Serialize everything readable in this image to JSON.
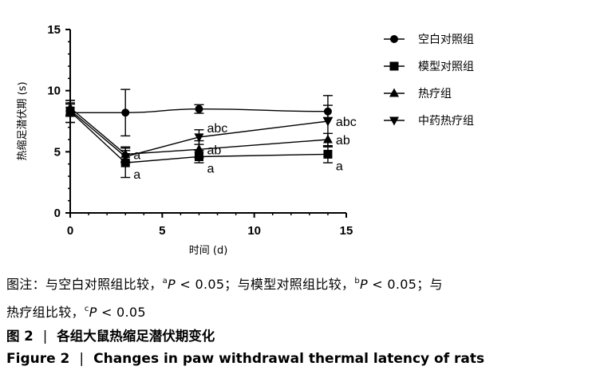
{
  "chart_data": {
    "type": "line",
    "xlabel": "时间 (d)",
    "ylabel": "热缩足潜伏期 (s)",
    "xlim": [
      0,
      15
    ],
    "ylim": [
      0,
      15
    ],
    "xticks": [
      0,
      5,
      10,
      15
    ],
    "yticks": [
      0,
      5,
      10,
      15
    ],
    "grid": false,
    "legend_position": "right",
    "x": [
      0,
      3,
      7,
      14
    ],
    "series": [
      {
        "name": "空白对照组",
        "marker": "circle",
        "values": [
          8.2,
          8.2,
          8.5,
          8.3
        ],
        "errors": [
          0.8,
          1.9,
          0.35,
          0.5
        ],
        "annotations": [
          "",
          "",
          "",
          ""
        ]
      },
      {
        "name": "模型对照组",
        "marker": "square",
        "values": [
          8.3,
          4.1,
          4.6,
          4.8
        ],
        "errors": [
          0.9,
          1.2,
          0.5,
          0.7
        ],
        "annotations": [
          "",
          "a",
          "a",
          "a"
        ]
      },
      {
        "name": "热疗组",
        "marker": "triangle-up",
        "values": [
          8.6,
          4.8,
          5.2,
          6.0
        ],
        "errors": [
          0.6,
          0.6,
          0.7,
          0.5
        ],
        "annotations": [
          "",
          "a",
          "ab",
          "ab"
        ]
      },
      {
        "name": "中药热疗组",
        "marker": "triangle-down",
        "values": [
          8.4,
          4.6,
          6.2,
          7.5
        ],
        "errors": [
          0.5,
          0.5,
          0.6,
          2.1
        ],
        "annotations": [
          "",
          "",
          "abc",
          "abc"
        ]
      }
    ]
  },
  "caption": {
    "note_line1_a": "图注：与空白对照组比较，",
    "sup_a": "a",
    "p_symbol": "P",
    "threshold": " < 0.05；",
    "note_line1_b": "与模型对照组比较，",
    "sup_b": "b",
    "note_line1_c": "与",
    "note_line2_a": "热疗组比较，",
    "sup_c": "c",
    "threshold_end": " < 0.05",
    "figure_label_cn": "图 2",
    "separator": "|",
    "title_cn": "各组大鼠热缩足潜伏期变化",
    "figure_label_en": "Figure 2",
    "title_en": "Changes in paw withdrawal thermal latency of rats"
  }
}
